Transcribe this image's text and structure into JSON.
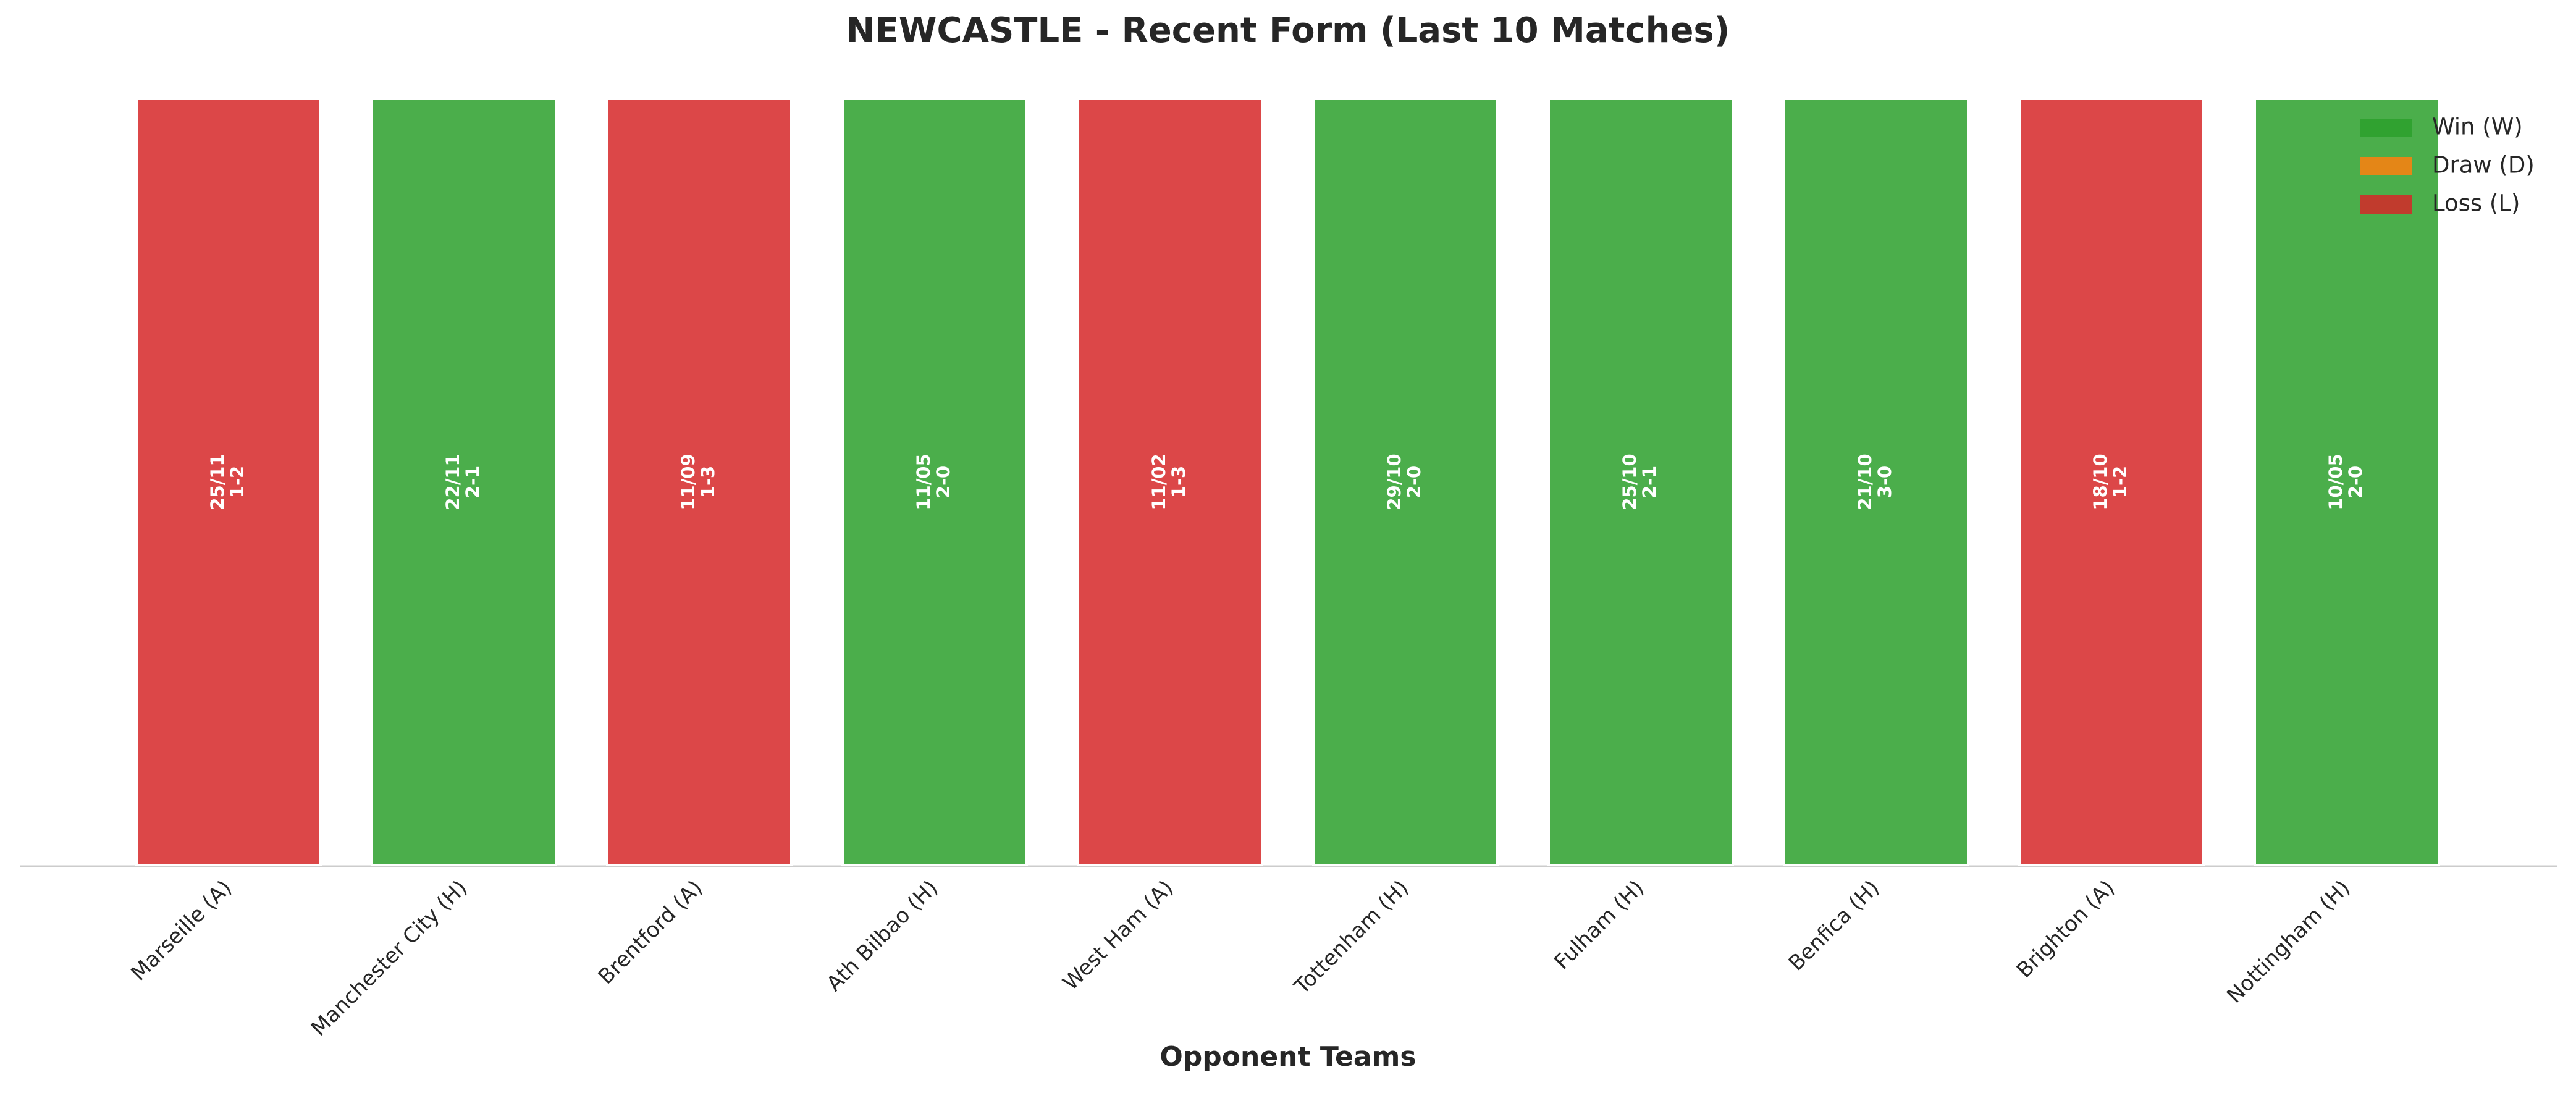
{
  "chart_data": {
    "type": "bar",
    "title": "NEWCASTLE - Recent Form (Last 10 Matches)",
    "x_label": "Opponent Teams",
    "categories": [
      "Marseille (A)",
      "Manchester City (H)",
      "Brentford (A)",
      "Ath Bilbao (H)",
      "West Ham (A)",
      "Tottenham (H)",
      "Fulham (H)",
      "Benfica (H)",
      "Brighton (A)",
      "Nottingham (H)"
    ],
    "values": [
      1,
      1,
      1,
      1,
      1,
      1,
      1,
      1,
      1,
      1
    ],
    "dates": [
      "25/11",
      "22/11",
      "11/09",
      "11/05",
      "11/02",
      "29/10",
      "25/10",
      "21/10",
      "18/10",
      "10/05"
    ],
    "scores": [
      "1-2",
      "2-1",
      "1-3",
      "2-0",
      "1-3",
      "2-0",
      "2-1",
      "3-0",
      "1-2",
      "2-0"
    ],
    "colors": [
      "#d62728",
      "#2ca02c",
      "#d62728",
      "#2ca02c",
      "#d62728",
      "#2ca02c",
      "#2ca02c",
      "#2ca02c",
      "#d62728",
      "#2ca02c"
    ],
    "ylim": [
      0,
      1
    ],
    "legend": [
      {
        "name": "Win (W)",
        "color": "#2ca02c"
      },
      {
        "name": "Draw (D)",
        "color": "#ff7f0e"
      },
      {
        "name": "Loss (L)",
        "color": "#d62728"
      }
    ],
    "legend_position": "upper right"
  }
}
